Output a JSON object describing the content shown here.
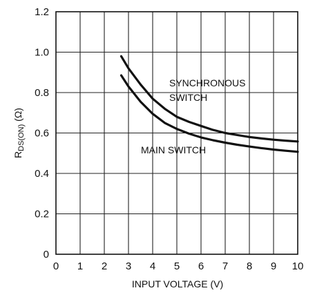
{
  "chart_data": {
    "type": "line",
    "xlabel": "INPUT VOLTAGE (V)",
    "ylabel": {
      "main": "R",
      "sub": "DS(ON)",
      "unit": " (Ω)"
    },
    "xlim": [
      0,
      10
    ],
    "ylim": [
      0,
      1.2
    ],
    "x_ticks": [
      "0",
      "1",
      "2",
      "3",
      "4",
      "5",
      "6",
      "7",
      "8",
      "9",
      "10"
    ],
    "y_ticks": [
      "0",
      "0.2",
      "0.4",
      "0.6",
      "0.8",
      "1.0",
      "1.2"
    ],
    "grid": true,
    "series": [
      {
        "label_lines": [
          "SYNCHRONOUS",
          "SWITCH"
        ],
        "x": [
          2.7,
          3.0,
          3.5,
          4.0,
          4.5,
          5.0,
          5.5,
          6.0,
          6.5,
          7.0,
          7.5,
          8.0,
          8.5,
          9.0,
          9.5,
          10.0
        ],
        "y": [
          0.98,
          0.92,
          0.84,
          0.77,
          0.72,
          0.68,
          0.655,
          0.635,
          0.615,
          0.6,
          0.59,
          0.58,
          0.573,
          0.567,
          0.562,
          0.558
        ]
      },
      {
        "label_lines": [
          "MAIN SWITCH"
        ],
        "x": [
          2.7,
          3.0,
          3.5,
          4.0,
          4.5,
          5.0,
          5.5,
          6.0,
          6.5,
          7.0,
          7.5,
          8.0,
          8.5,
          9.0,
          9.5,
          10.0
        ],
        "y": [
          0.885,
          0.83,
          0.755,
          0.695,
          0.65,
          0.62,
          0.597,
          0.578,
          0.564,
          0.552,
          0.542,
          0.533,
          0.525,
          0.518,
          0.512,
          0.507
        ]
      }
    ]
  }
}
